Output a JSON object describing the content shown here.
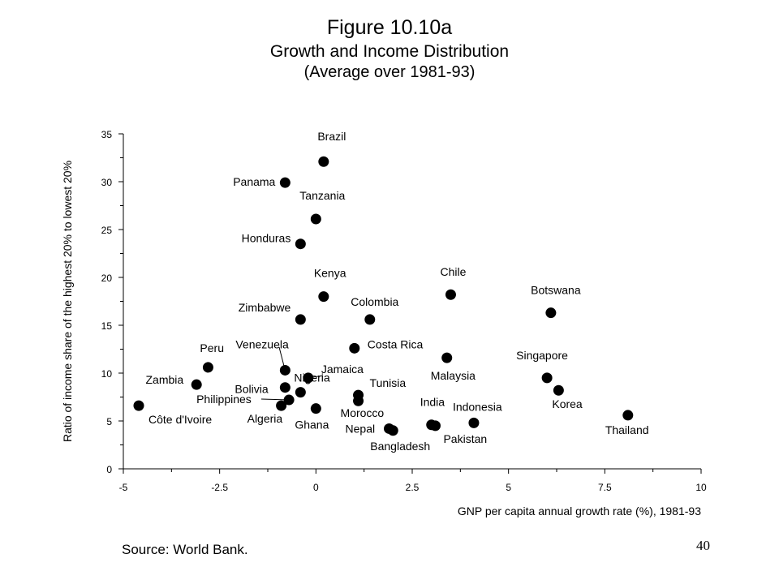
{
  "slide": {
    "title": "Figure 10.10a",
    "subtitle": "Growth and Income Distribution",
    "subtitle2": "(Average over 1981-93)",
    "source": "Source: World Bank.",
    "page_number": "40"
  },
  "chart_data": {
    "type": "scatter",
    "xlabel": "GNP per capita annual growth rate (%), 1981-93",
    "ylabel": "Ratio of income share of the highest 20% to lowest 20%",
    "xlim": [
      -5,
      10
    ],
    "ylim": [
      0,
      35
    ],
    "xticks": [
      -5,
      -2.5,
      0,
      2.5,
      5,
      7.5,
      10
    ],
    "xtick_labels": [
      "-5",
      "-2.5",
      "0",
      "2.5",
      "5",
      "7.5",
      "10"
    ],
    "yticks": [
      0,
      5,
      10,
      15,
      20,
      25,
      30,
      35
    ],
    "grid": false,
    "marker_color": "#000000",
    "points": [
      {
        "label": "Brazil",
        "x": 0.2,
        "y": 32.1
      },
      {
        "label": "Panama",
        "x": -0.8,
        "y": 29.9
      },
      {
        "label": "Tanzania",
        "x": 0.0,
        "y": 26.1
      },
      {
        "label": "Honduras",
        "x": -0.4,
        "y": 23.5
      },
      {
        "label": "Kenya",
        "x": 0.2,
        "y": 18.0
      },
      {
        "label": "Chile",
        "x": 3.5,
        "y": 18.2
      },
      {
        "label": "Botswana",
        "x": 6.1,
        "y": 16.3
      },
      {
        "label": "Zimbabwe",
        "x": -0.4,
        "y": 15.6
      },
      {
        "label": "Colombia",
        "x": 1.4,
        "y": 15.6
      },
      {
        "label": "Costa Rica",
        "x": 1.0,
        "y": 12.6
      },
      {
        "label": "Malaysia",
        "x": 3.4,
        "y": 11.6
      },
      {
        "label": "Peru",
        "x": -2.8,
        "y": 10.6
      },
      {
        "label": "Venezuela",
        "x": -0.8,
        "y": 10.3
      },
      {
        "label": "Jamaica",
        "x": -0.2,
        "y": 9.5
      },
      {
        "label": "Singapore",
        "x": 6.0,
        "y": 9.5
      },
      {
        "label": "Zambia",
        "x": -3.1,
        "y": 8.8
      },
      {
        "label": "Bolivia",
        "x": -0.8,
        "y": 8.5
      },
      {
        "label": "Korea",
        "x": 6.3,
        "y": 8.2
      },
      {
        "label": "Nigeria",
        "x": -0.4,
        "y": 8.0
      },
      {
        "label": "Tunisia",
        "x": 1.1,
        "y": 7.7
      },
      {
        "label": "Philippines",
        "x": -0.7,
        "y": 7.2
      },
      {
        "label": "Morocco",
        "x": 1.1,
        "y": 7.1
      },
      {
        "label": "Côte d'Ivoire",
        "x": -4.6,
        "y": 6.6
      },
      {
        "label": "Algeria",
        "x": -0.9,
        "y": 6.6
      },
      {
        "label": "Ghana",
        "x": 0.0,
        "y": 6.3
      },
      {
        "label": "Thailand",
        "x": 8.1,
        "y": 5.6
      },
      {
        "label": "Indonesia",
        "x": 4.1,
        "y": 4.8
      },
      {
        "label": "India",
        "x": 3.0,
        "y": 4.6
      },
      {
        "label": "Pakistan",
        "x": 3.1,
        "y": 4.5
      },
      {
        "label": "Nepal",
        "x": 1.9,
        "y": 4.2
      },
      {
        "label": "Bangladesh",
        "x": 2.0,
        "y": 4.0
      }
    ]
  }
}
